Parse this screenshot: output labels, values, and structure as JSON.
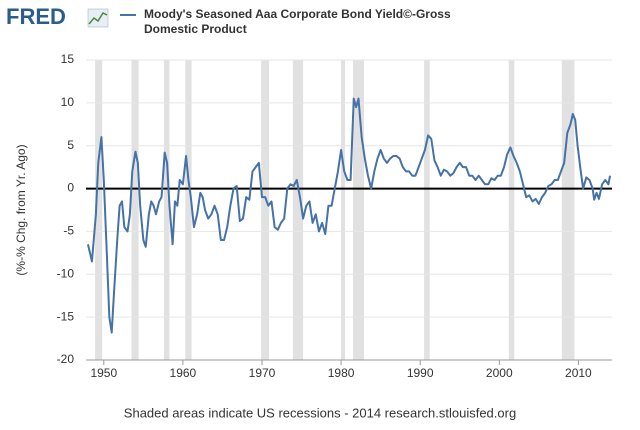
{
  "chart_data": {
    "type": "line",
    "logo": "FRED",
    "ylabel": "(%-% Chg. from Yr. Ago)",
    "footer": "Shaded areas indicate US recessions - 2014 research.stlouisfed.org",
    "xlim": [
      1947.75,
      2014.25
    ],
    "xticks": [
      1950,
      1960,
      1970,
      1980,
      1990,
      2000,
      2010
    ],
    "ylim": [
      -20,
      15
    ],
    "yticks": [
      -20,
      -15,
      -10,
      -5,
      0,
      5,
      10,
      15
    ],
    "grid": true,
    "recessions": [
      [
        1948.9,
        1949.8
      ],
      [
        1953.5,
        1954.4
      ],
      [
        1957.6,
        1958.3
      ],
      [
        1960.3,
        1961.1
      ],
      [
        1969.9,
        1970.9
      ],
      [
        1973.9,
        1975.2
      ],
      [
        1980.0,
        1980.5
      ],
      [
        1981.5,
        1982.9
      ],
      [
        1990.5,
        1991.2
      ],
      [
        2001.2,
        2001.9
      ],
      [
        2007.9,
        2009.5
      ]
    ],
    "recession_color": "#e1e1e1",
    "x": [
      1948.0,
      1948.5,
      1949.0,
      1949.3,
      1949.7,
      1950.0,
      1950.4,
      1950.7,
      1951.0,
      1951.3,
      1951.7,
      1952.0,
      1952.3,
      1952.6,
      1953.0,
      1953.3,
      1953.6,
      1954.0,
      1954.3,
      1954.6,
      1955.0,
      1955.3,
      1955.7,
      1956.0,
      1956.3,
      1956.6,
      1957.0,
      1957.3,
      1957.7,
      1958.0,
      1958.3,
      1958.7,
      1959.0,
      1959.3,
      1959.6,
      1960.0,
      1960.4,
      1960.7,
      1961.0,
      1961.4,
      1961.8,
      1962.2,
      1962.5,
      1962.8,
      1963.2,
      1963.6,
      1964.0,
      1964.4,
      1964.8,
      1965.2,
      1965.6,
      1966.0,
      1966.4,
      1966.8,
      1967.2,
      1967.6,
      1968.0,
      1968.4,
      1968.8,
      1969.2,
      1969.6,
      1970.0,
      1970.4,
      1970.8,
      1971.2,
      1971.6,
      1972.0,
      1972.4,
      1972.8,
      1973.2,
      1973.6,
      1974.0,
      1974.4,
      1974.8,
      1975.2,
      1975.6,
      1976.0,
      1976.4,
      1976.8,
      1977.2,
      1977.6,
      1978.0,
      1978.4,
      1978.8,
      1979.2,
      1979.6,
      1980.0,
      1980.4,
      1980.8,
      1981.2,
      1981.6,
      1981.9,
      1982.2,
      1982.6,
      1983.0,
      1983.4,
      1983.8,
      1984.2,
      1984.6,
      1985.0,
      1985.4,
      1985.8,
      1986.2,
      1986.6,
      1987.0,
      1987.4,
      1987.8,
      1988.2,
      1988.6,
      1989.0,
      1989.4,
      1989.8,
      1990.2,
      1990.6,
      1991.0,
      1991.4,
      1991.8,
      1992.2,
      1992.6,
      1993.0,
      1993.4,
      1993.8,
      1994.2,
      1994.6,
      1995.0,
      1995.4,
      1995.8,
      1996.2,
      1996.6,
      1997.0,
      1997.4,
      1997.8,
      1998.2,
      1998.6,
      1999.0,
      1999.4,
      1999.8,
      2000.2,
      2000.6,
      2001.0,
      2001.4,
      2001.8,
      2002.2,
      2002.6,
      2003.0,
      2003.4,
      2003.8,
      2004.2,
      2004.6,
      2005.0,
      2005.4,
      2005.8,
      2006.2,
      2006.6,
      2007.0,
      2007.4,
      2007.8,
      2008.2,
      2008.6,
      2009.0,
      2009.3,
      2009.6,
      2009.9,
      2010.3,
      2010.6,
      2011.0,
      2011.4,
      2011.8,
      2012.0,
      2012.3,
      2012.6,
      2013.0,
      2013.4,
      2013.8,
      2014.0
    ],
    "series": [
      {
        "name": "Moody's Seasoned Aaa Corporate Bond Yield©-Gross Domestic Product",
        "color": "#4572a7",
        "values": [
          -6.5,
          -8.5,
          -3,
          3,
          6,
          1,
          -8,
          -15,
          -16.8,
          -12,
          -6,
          -2,
          -1.5,
          -4.5,
          -5,
          -3,
          2,
          4.3,
          3,
          -2,
          -6,
          -6.8,
          -3,
          -1.5,
          -2,
          -3,
          -1.5,
          -1,
          4.2,
          3,
          -2,
          -6.5,
          -1.5,
          -2,
          1,
          0.5,
          3.8,
          1,
          -1,
          -4.5,
          -3,
          -0.5,
          -1,
          -2.5,
          -3.5,
          -3,
          -2,
          -3,
          -6,
          -6,
          -4.5,
          -2,
          0,
          0.3,
          -3.8,
          -3.5,
          -1,
          -1.3,
          2,
          2.5,
          3,
          -1,
          -1,
          -2,
          -1.5,
          -4.5,
          -4.8,
          -4,
          -3.5,
          0,
          0.5,
          0.3,
          1,
          -1,
          -3.5,
          -2,
          -1.5,
          -4,
          -3,
          -5,
          -4,
          -5.3,
          -2,
          -2,
          0,
          2,
          4.5,
          2,
          1,
          1,
          10.5,
          9.5,
          10.5,
          6,
          3.5,
          1.5,
          0,
          2,
          3.5,
          4.5,
          3.5,
          3,
          3.5,
          3.8,
          3.8,
          3.5,
          2.5,
          2,
          2,
          1.5,
          1.5,
          2.5,
          3.5,
          4.5,
          6.2,
          5.8,
          3.3,
          2.5,
          1.5,
          2.2,
          2,
          1.5,
          1.8,
          2.5,
          3,
          2.5,
          2.5,
          1.5,
          1.5,
          1,
          1.5,
          1,
          0.5,
          0.5,
          1.2,
          1,
          1.5,
          1.5,
          2.5,
          4,
          4.8,
          3.8,
          3,
          2,
          0.5,
          -1,
          -0.8,
          -1.5,
          -1.2,
          -1.8,
          -1,
          -0.5,
          0.3,
          0.5,
          1,
          1,
          2,
          3,
          6.5,
          7.5,
          8.7,
          8,
          5,
          2,
          0,
          1.3,
          1,
          0,
          -1.3,
          -0.5,
          -1.2,
          0.5,
          1,
          0.5,
          1.5
        ]
      }
    ]
  }
}
